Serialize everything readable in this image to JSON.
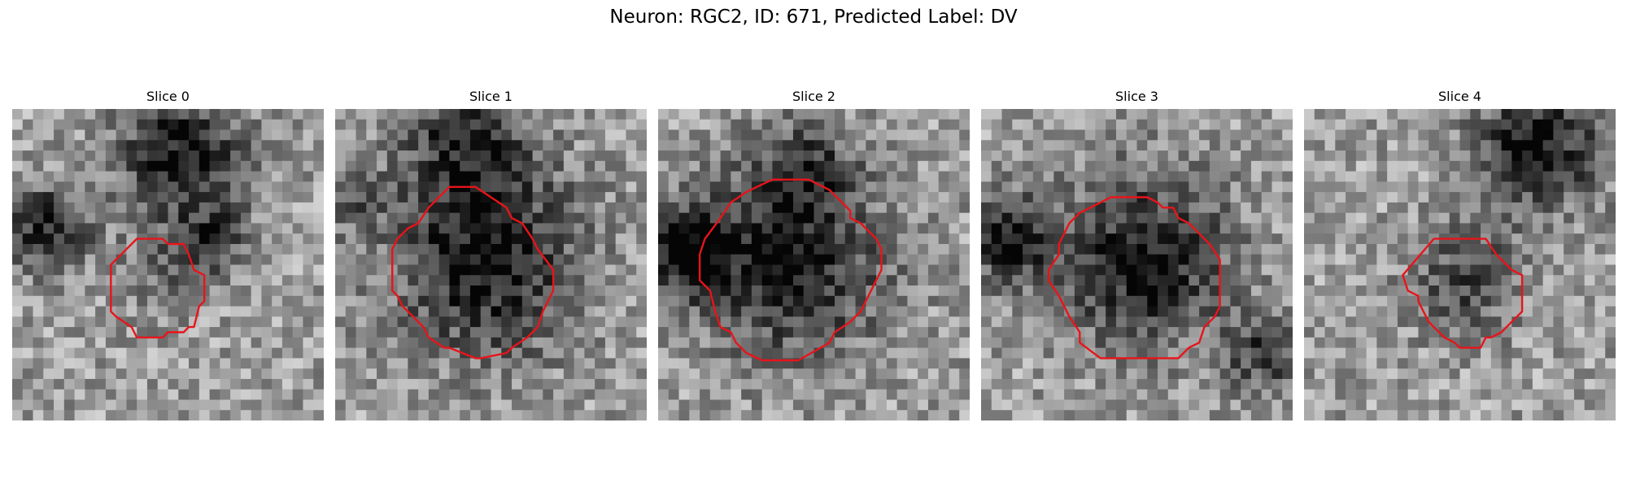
{
  "figure": {
    "title": "Neuron: RGC2, ID: 671, Predicted Label: DV"
  },
  "colors": {
    "outline": "#e8141a",
    "background": "#ffffff",
    "text": "#000000"
  },
  "slices": [
    {
      "title": "Slice 0"
    },
    {
      "title": "Slice 1"
    },
    {
      "title": "Slice 2"
    },
    {
      "title": "Slice 3"
    },
    {
      "title": "Slice 4"
    }
  ]
}
